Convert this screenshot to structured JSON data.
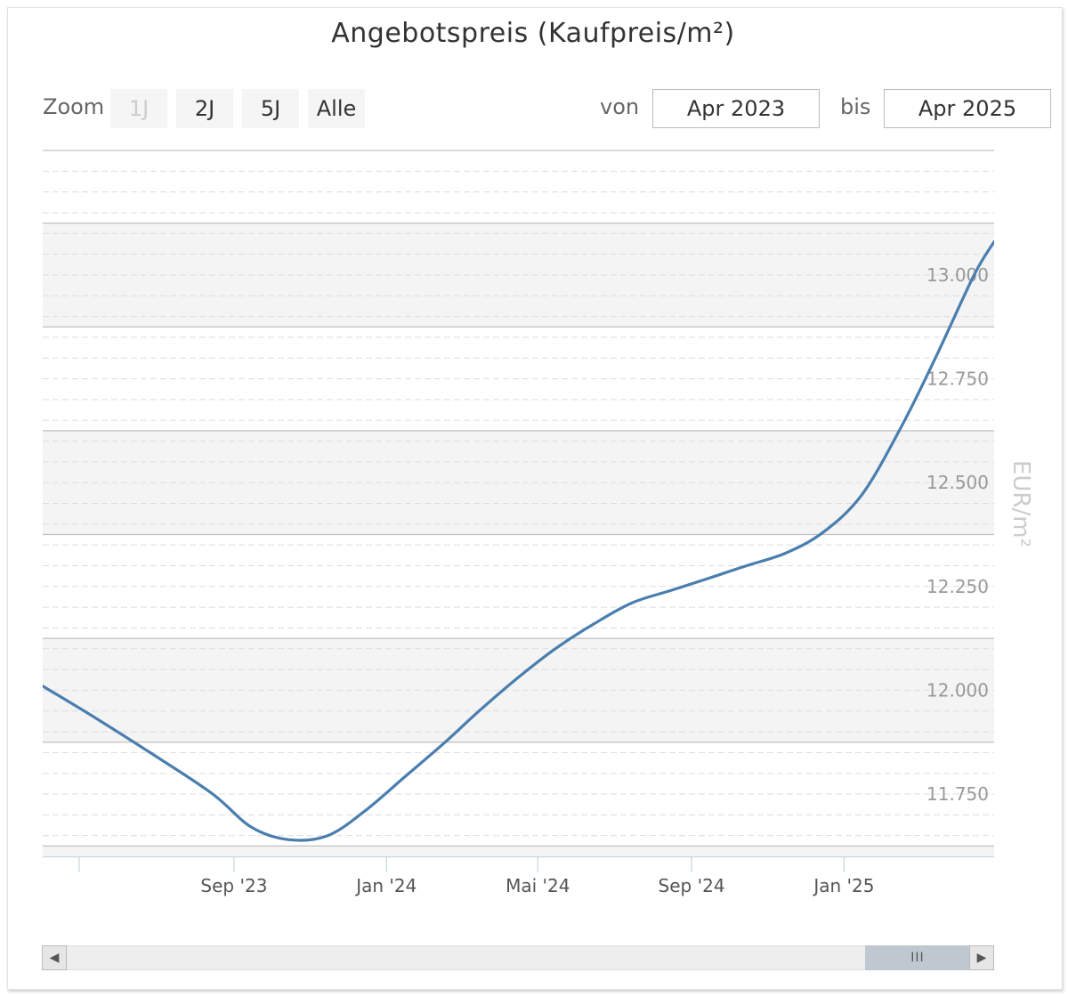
{
  "title": "Angebotspreis (Kaufpreis/m²)",
  "toolbar": {
    "zoom_label": "Zoom",
    "zoom_buttons": [
      {
        "label": "1J",
        "disabled": true
      },
      {
        "label": "2J",
        "disabled": false
      },
      {
        "label": "5J",
        "disabled": false
      },
      {
        "label": "Alle",
        "disabled": false
      }
    ],
    "from_label": "von",
    "from_value": "Apr 2023",
    "to_label": "bis",
    "to_value": "Apr 2025"
  },
  "scrollbar": {
    "left_arrow_icon": "triangle-left-icon",
    "right_arrow_icon": "triangle-right-icon",
    "thumb_grip_icon": "grip-lines-icon"
  },
  "colors": {
    "line": "#4a7eae",
    "band": "#f4f4f4",
    "gridline": "#c0c0c0",
    "minor_gridline": "#dddddd",
    "axis_label": "#999999",
    "x_label": "#555555",
    "ylabel": "#cccccc"
  },
  "chart_data": {
    "type": "line",
    "title": "Angebotspreis (Kaufpreis/m²)",
    "xlabel": "",
    "ylabel": "EUR/m²",
    "xlim": [
      "2023-04-01",
      "2025-05-01"
    ],
    "ylim": [
      11.6,
      13.3
    ],
    "x_ticks": [
      "2023-09-01",
      "2024-01-01",
      "2024-05-01",
      "2024-09-01",
      "2025-01-01"
    ],
    "x_tick_labels": [
      "Sep '23",
      "Jan '24",
      "Mai '24",
      "Sep '24",
      "Jan '25"
    ],
    "y_ticks": [
      11.75,
      12.0,
      12.25,
      12.5,
      12.75,
      13.0
    ],
    "y_tick_labels": [
      "11.750",
      "12.000",
      "12.250",
      "12.500",
      "12.750",
      "13.000"
    ],
    "grid": true,
    "series": [
      {
        "x": [
          "2023-04-01",
          "2023-05-15",
          "2023-07-01",
          "2023-08-15",
          "2023-09-15",
          "2023-10-15",
          "2023-11-15",
          "2023-12-15",
          "2024-01-15",
          "2024-02-15",
          "2024-03-15",
          "2024-04-15",
          "2024-05-15",
          "2024-06-15",
          "2024-07-15",
          "2024-08-15",
          "2024-09-15",
          "2024-10-15",
          "2024-11-15",
          "2024-12-15",
          "2025-01-15",
          "2025-02-15",
          "2025-03-15",
          "2025-04-15",
          "2025-05-01"
        ],
        "values": [
          12.01,
          11.93,
          11.84,
          11.75,
          11.67,
          11.64,
          11.65,
          11.71,
          11.79,
          11.87,
          11.95,
          12.03,
          12.1,
          12.16,
          12.21,
          12.24,
          12.27,
          12.3,
          12.33,
          12.38,
          12.47,
          12.63,
          12.8,
          13.0,
          13.08
        ]
      }
    ]
  }
}
